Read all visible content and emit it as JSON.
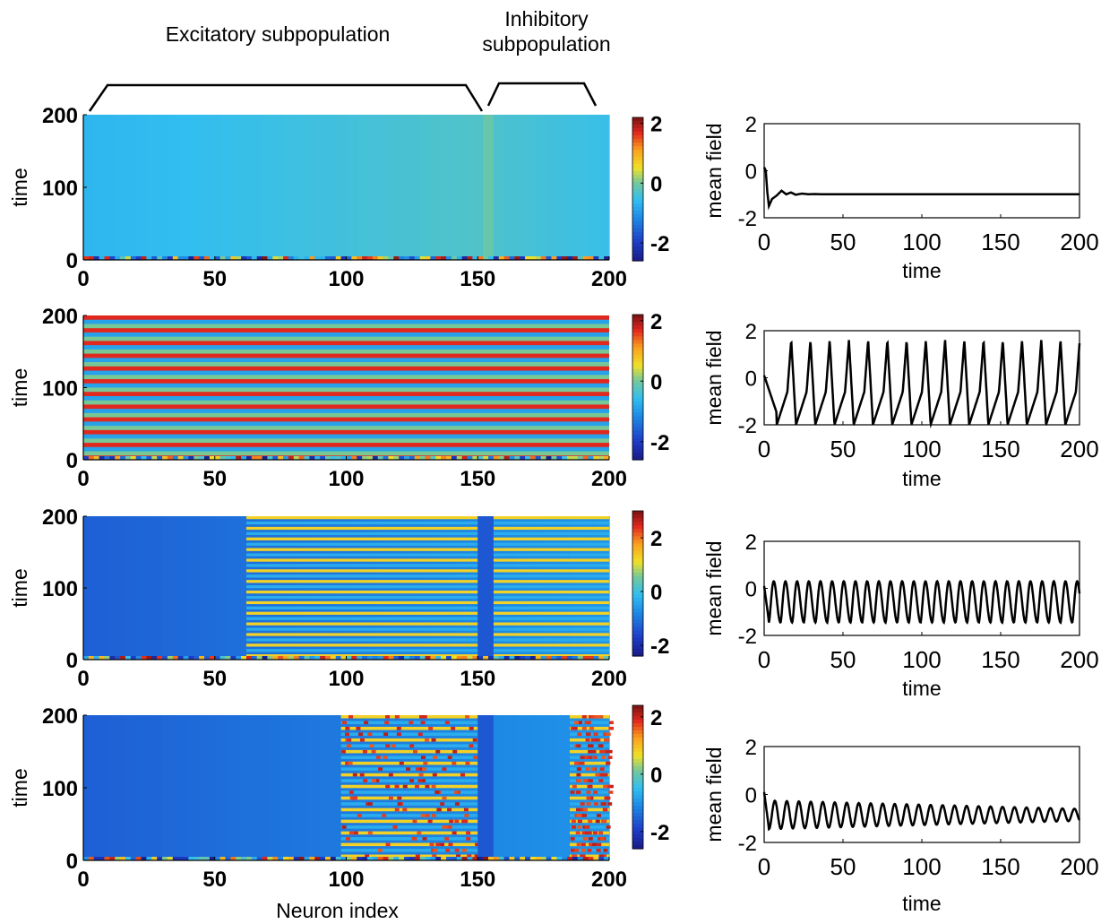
{
  "annotations": {
    "excitatory": "Excitatory subpopulation",
    "inhibitory_line1": "Inhibitory",
    "inhibitory_line2": "subpopulation"
  },
  "chart_data": [
    {
      "panel": "raster",
      "row": 1,
      "type": "heatmap",
      "xlabel": "",
      "ylabel": "time",
      "xticks": [
        0,
        50,
        100,
        150,
        200
      ],
      "yticks": [
        0,
        100,
        200
      ],
      "xlim": [
        0,
        200
      ],
      "ylim": [
        0,
        200
      ],
      "colorbar": {
        "ticks": [
          2,
          0,
          -2
        ],
        "range": [
          -2.6,
          2.2
        ]
      },
      "dynamics": "steady",
      "description": "near-uniform low state; excitatory neurons slightly lower than inhibitory"
    },
    {
      "panel": "raster",
      "row": 2,
      "type": "heatmap",
      "xlabel": "",
      "ylabel": "time",
      "xticks": [
        0,
        50,
        100,
        150,
        200
      ],
      "yticks": [
        0,
        100,
        200
      ],
      "xlim": [
        0,
        200
      ],
      "ylim": [
        0,
        200
      ],
      "colorbar": {
        "ticks": [
          2,
          0,
          -2
        ],
        "range": [
          -2.6,
          2.2
        ]
      },
      "dynamics": "synchronous oscillation"
    },
    {
      "panel": "raster",
      "row": 3,
      "type": "heatmap",
      "xlabel": "",
      "ylabel": "time",
      "xticks": [
        0,
        50,
        100,
        150,
        200
      ],
      "yticks": [
        0,
        100,
        200
      ],
      "xlim": [
        0,
        200
      ],
      "ylim": [
        0,
        200
      ],
      "colorbar": {
        "ticks": [
          2,
          0,
          -2
        ],
        "range": [
          -2.4,
          3.0
        ]
      },
      "dynamics": "partial oscillation (neurons ~62-150 and ~185-200)"
    },
    {
      "panel": "raster",
      "row": 4,
      "type": "heatmap",
      "xlabel": "Neuron index",
      "ylabel": "time",
      "xticks": [
        0,
        50,
        100,
        150,
        200
      ],
      "yticks": [
        0,
        100,
        200
      ],
      "xlim": [
        0,
        200
      ],
      "ylim": [
        0,
        200
      ],
      "colorbar": {
        "ticks": [
          2,
          0,
          -2
        ],
        "range": [
          -2.6,
          2.4
        ]
      },
      "dynamics": "chimera-like (neurons ~98-150 and ~185-200 incoherent)"
    },
    {
      "panel": "mean_field",
      "row": 1,
      "type": "line",
      "xlabel": "time",
      "ylabel": "mean field",
      "xticks": [
        0,
        50,
        100,
        150,
        200
      ],
      "yticks": [
        2,
        0,
        -2
      ],
      "xlim": [
        0,
        200
      ],
      "ylim": [
        -2,
        2
      ],
      "series": [
        {
          "shape": "damped",
          "x": [
            0,
            1,
            2,
            3,
            5,
            8,
            11,
            14,
            17,
            20,
            24,
            28,
            32,
            36,
            40,
            200
          ],
          "y": [
            0.15,
            0,
            -0.9,
            -1.5,
            -1.2,
            -1.05,
            -0.85,
            -1.0,
            -0.92,
            -1.02,
            -0.97,
            -1.0,
            -0.99,
            -1.0,
            -1.0,
            -1.0
          ]
        }
      ]
    },
    {
      "panel": "mean_field",
      "row": 2,
      "type": "line",
      "xlabel": "time",
      "ylabel": "mean field",
      "xticks": [
        0,
        50,
        100,
        150,
        200
      ],
      "yticks": [
        2,
        0,
        -2
      ],
      "xlim": [
        0,
        200
      ],
      "ylim": [
        -2,
        2
      ],
      "series": [
        {
          "shape": "relaxation",
          "period": 12.2,
          "min": -2.0,
          "max": 1.6
        }
      ]
    },
    {
      "panel": "mean_field",
      "row": 3,
      "type": "line",
      "xlabel": "time",
      "ylabel": "mean field",
      "xticks": [
        0,
        50,
        100,
        150,
        200
      ],
      "yticks": [
        2,
        0,
        -2
      ],
      "xlim": [
        0,
        200
      ],
      "ylim": [
        -2,
        2
      ],
      "series": [
        {
          "shape": "oscillation",
          "period": 7.4,
          "min": -1.45,
          "max": 0.3
        }
      ]
    },
    {
      "panel": "mean_field",
      "row": 4,
      "type": "line",
      "xlabel": "time",
      "ylabel": "mean field",
      "xticks": [
        0,
        50,
        100,
        150,
        200
      ],
      "yticks": [
        2,
        0,
        -2
      ],
      "xlim": [
        0,
        200
      ],
      "ylim": [
        -2,
        2
      ],
      "series": [
        {
          "shape": "decaying_oscillation",
          "period": 7.6,
          "center": -0.85,
          "amp_start": 0.6,
          "amp_end": 0.25
        }
      ]
    }
  ]
}
